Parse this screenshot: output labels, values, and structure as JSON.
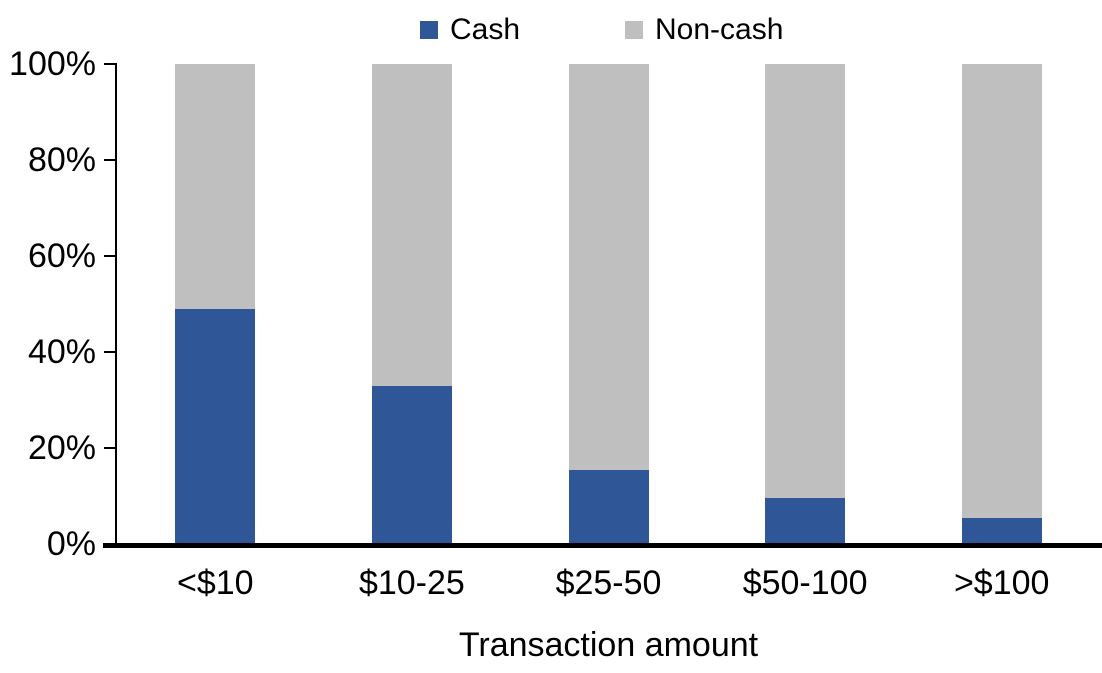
{
  "chart_data": {
    "type": "bar",
    "stacked": true,
    "stack_total": 100,
    "title": "",
    "xlabel": "Transaction amount",
    "ylabel": "",
    "categories": [
      "<$10",
      "$10-25",
      "$25-50",
      "$50-100",
      ">$100"
    ],
    "series": [
      {
        "name": "Cash",
        "color": "#2F5696",
        "values": [
          49,
          33,
          15.5,
          9.5,
          5.5
        ]
      },
      {
        "name": "Non-cash",
        "color": "#BFBFBF",
        "values": [
          51,
          67,
          84.5,
          90.5,
          94.5
        ]
      }
    ],
    "ylim": [
      0,
      100
    ],
    "ytick_labels": [
      "0%",
      "20%",
      "40%",
      "60%",
      "80%",
      "100%"
    ],
    "legend_position": "top",
    "grid": false,
    "colors": {
      "cash": "#2F5696",
      "noncash": "#BFBFBF",
      "axis": "#000000",
      "text": "#000000",
      "background": "#FFFFFF"
    }
  }
}
